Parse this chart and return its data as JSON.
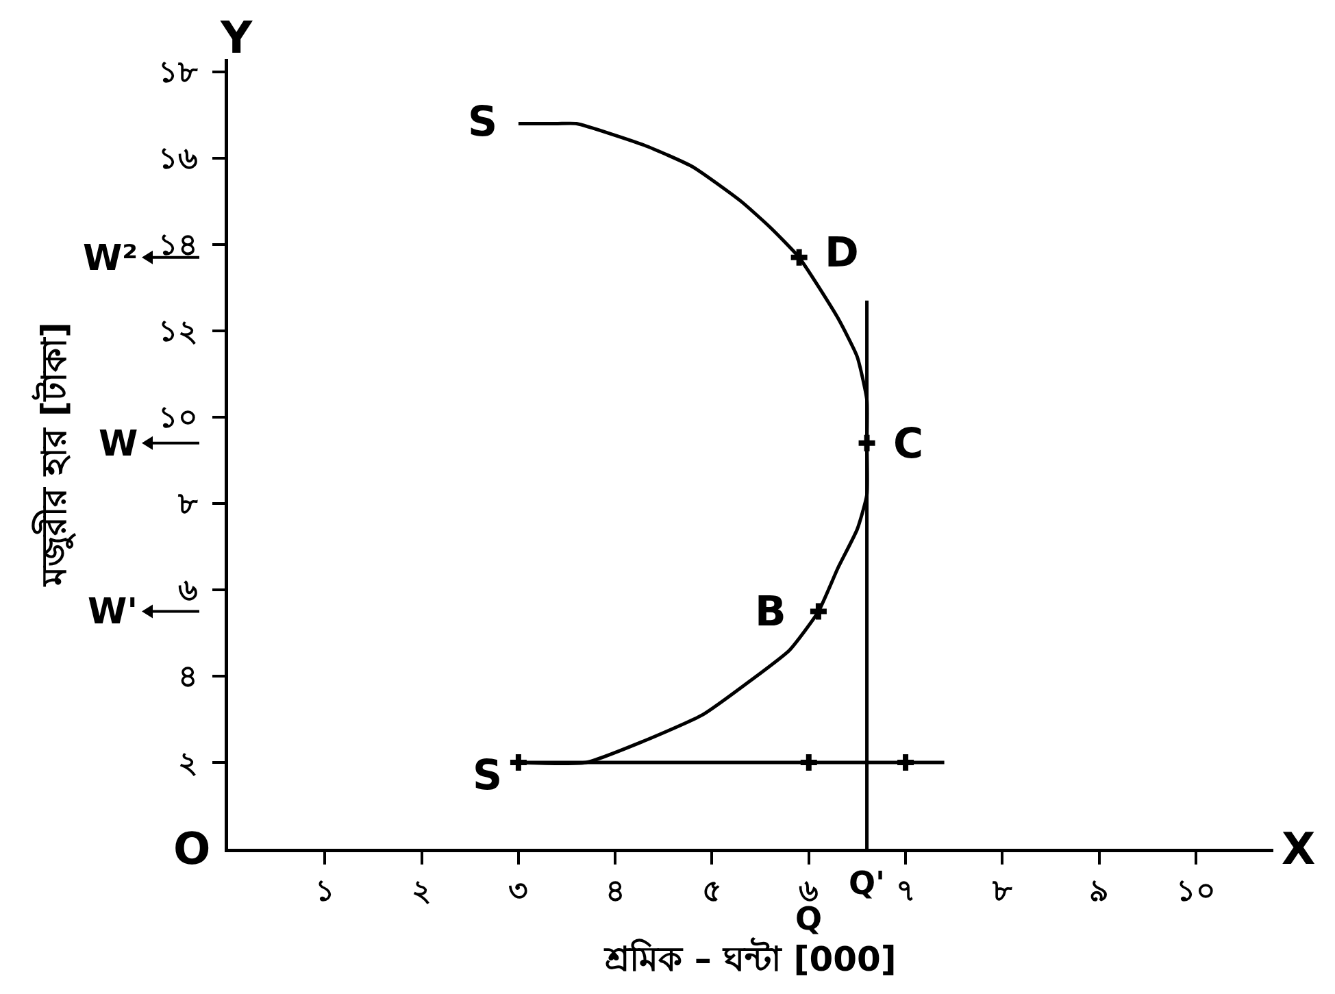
{
  "chart_data": {
    "type": "line",
    "xlabel": "শ্রমিক – ঘন্টা [000]",
    "ylabel": "মজুরীর হার [টাকা]",
    "xlim": [
      0,
      10.8
    ],
    "ylim": [
      0,
      18.3
    ],
    "xticks": [
      {
        "value": 1,
        "label": "১"
      },
      {
        "value": 2,
        "label": "২"
      },
      {
        "value": 3,
        "label": "৩"
      },
      {
        "value": 4,
        "label": "৪"
      },
      {
        "value": 5,
        "label": "৫"
      },
      {
        "value": 6,
        "label": "৬"
      },
      {
        "value": 7,
        "label": "৭"
      },
      {
        "value": 8,
        "label": "৮"
      },
      {
        "value": 9,
        "label": "৯"
      },
      {
        "value": 10,
        "label": "১০"
      }
    ],
    "yticks": [
      {
        "value": 2,
        "label": "২"
      },
      {
        "value": 4,
        "label": "৪"
      },
      {
        "value": 6,
        "label": "৬"
      },
      {
        "value": 8,
        "label": "৮"
      },
      {
        "value": 10,
        "label": "১০"
      },
      {
        "value": 12,
        "label": "১২"
      },
      {
        "value": 14,
        "label": "১৪"
      },
      {
        "value": 16,
        "label": "১৬"
      },
      {
        "value": 18,
        "label": "১৮"
      }
    ],
    "series": [
      {
        "color": "#000000",
        "x": [
          3.0,
          3.4,
          3.6,
          4.3,
          4.8,
          5.3,
          5.6,
          5.9,
          6.3,
          6.5,
          6.6,
          6.6,
          6.6,
          6.5,
          6.3,
          6.1,
          5.8,
          5.4,
          4.9,
          4.3,
          3.7,
          3.0
        ],
        "values": [
          16.8,
          16.8,
          16.8,
          16.3,
          15.8,
          15.0,
          14.4,
          13.7,
          12.3,
          11.4,
          10.4,
          9.4,
          8.2,
          7.4,
          6.5,
          5.5,
          4.6,
          3.9,
          3.1,
          2.5,
          2.0,
          2.0
        ]
      },
      {
        "color": "#000000",
        "x": [
          6.6,
          6.6
        ],
        "values": [
          0,
          12.7
        ]
      },
      {
        "color": "#000000",
        "x": [
          3,
          7.4
        ],
        "values": [
          2,
          2
        ]
      },
      {
        "type": "scatter",
        "color": "#000000",
        "marker": "cross",
        "x": [
          3,
          6,
          7,
          6.1,
          6.6,
          5.9
        ],
        "values": [
          2,
          2,
          2,
          5.5,
          9.4,
          13.7
        ]
      }
    ],
    "annotations": [
      {
        "text": "S",
        "x": 3.0,
        "y": 16.8
      },
      {
        "text": "D",
        "x": 5.9,
        "y": 13.7
      },
      {
        "text": "C",
        "x": 6.6,
        "y": 9.4
      },
      {
        "text": "B",
        "x": 6.1,
        "y": 5.5
      },
      {
        "text": "S",
        "x": 3.0,
        "y": 2.0
      },
      "O",
      "X",
      "Y",
      "Q",
      {
        "text": "Q'",
        "x": 6.6,
        "y": 0
      },
      "W²",
      "W",
      "W'"
    ]
  }
}
